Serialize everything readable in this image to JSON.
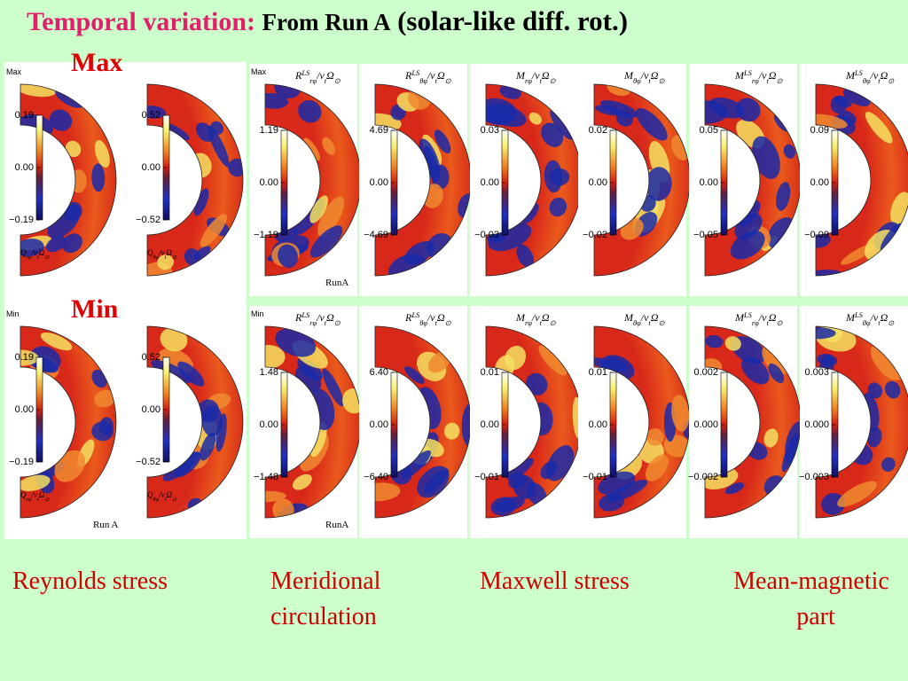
{
  "title": {
    "lead": "Temporal variation:",
    "rest": "From Run A",
    "paren": "(solar-like diff. rot.)"
  },
  "row_labels": [
    "Max",
    "Min"
  ],
  "panels": [
    [
      {
        "corner": "Max",
        "label": [
          {
            "t": "Q"
          },
          {
            "t": "rφ",
            "s": "sub"
          },
          {
            "t": "/ν"
          },
          {
            "t": "t",
            "s": "sub"
          },
          {
            "t": "Ω"
          },
          {
            "t": "⊙",
            "s": "sub"
          }
        ],
        "ticks": [
          "0.19",
          "0.00",
          "−0.19"
        ]
      },
      {
        "label": [
          {
            "t": "Q"
          },
          {
            "t": "θφ",
            "s": "sub"
          },
          {
            "t": "/ν"
          },
          {
            "t": "t",
            "s": "sub"
          },
          {
            "t": "Ω"
          },
          {
            "t": "⊙",
            "s": "sub"
          }
        ],
        "ticks": [
          "0.52",
          "0.00",
          "−0.52"
        ]
      },
      {
        "corner": "Max",
        "label": [
          {
            "t": "R"
          },
          {
            "t": "LS",
            "s": "sup"
          },
          {
            "t": "rφ",
            "s": "sub"
          },
          {
            "t": "/ν"
          },
          {
            "t": "t",
            "s": "sub"
          },
          {
            "t": "Ω"
          },
          {
            "t": "⊙",
            "s": "sub"
          }
        ],
        "ticks": [
          "1.19",
          "0.00",
          "−1.19"
        ],
        "run": "RunA"
      },
      {
        "label": [
          {
            "t": "R"
          },
          {
            "t": "LS",
            "s": "sup"
          },
          {
            "t": "θφ",
            "s": "sub"
          },
          {
            "t": "/ν"
          },
          {
            "t": "t",
            "s": "sub"
          },
          {
            "t": "Ω"
          },
          {
            "t": "⊙",
            "s": "sub"
          }
        ],
        "ticks": [
          "4.69",
          "0.00",
          "−4.69"
        ]
      },
      {
        "label": [
          {
            "t": "M"
          },
          {
            "t": "rφ",
            "s": "sub"
          },
          {
            "t": "/ν"
          },
          {
            "t": "t",
            "s": "sub"
          },
          {
            "t": "Ω"
          },
          {
            "t": "⊙",
            "s": "sub"
          }
        ],
        "ticks": [
          "0.03",
          "0.00",
          "−0.03"
        ]
      },
      {
        "label": [
          {
            "t": "M"
          },
          {
            "t": "θφ",
            "s": "sub"
          },
          {
            "t": "/ν"
          },
          {
            "t": "t",
            "s": "sub"
          },
          {
            "t": "Ω"
          },
          {
            "t": "⊙",
            "s": "sub"
          }
        ],
        "ticks": [
          "0.02",
          "0.00",
          "−0.02"
        ]
      },
      {
        "label": [
          {
            "t": "M"
          },
          {
            "t": "LS",
            "s": "sup"
          },
          {
            "t": "rφ",
            "s": "sub"
          },
          {
            "t": "/ν"
          },
          {
            "t": "t",
            "s": "sub"
          },
          {
            "t": "Ω"
          },
          {
            "t": "⊙",
            "s": "sub"
          }
        ],
        "ticks": [
          "0.05",
          "0.00",
          "−0.05"
        ]
      },
      {
        "label": [
          {
            "t": "M"
          },
          {
            "t": "LS",
            "s": "sup"
          },
          {
            "t": "θφ",
            "s": "sub"
          },
          {
            "t": "/ν"
          },
          {
            "t": "t",
            "s": "sub"
          },
          {
            "t": "Ω"
          },
          {
            "t": "⊙",
            "s": "sub"
          }
        ],
        "ticks": [
          "0.09",
          "0.00",
          "−0.09"
        ]
      }
    ],
    [
      {
        "corner": "Min",
        "label": [
          {
            "t": "Q"
          },
          {
            "t": "rφ",
            "s": "sub"
          },
          {
            "t": "/ν"
          },
          {
            "t": "t",
            "s": "sub"
          },
          {
            "t": "Ω"
          },
          {
            "t": "⊙",
            "s": "sub"
          }
        ],
        "ticks": [
          "0.19",
          "0.00",
          "−0.19"
        ],
        "run": "Run A"
      },
      {
        "label": [
          {
            "t": "Q"
          },
          {
            "t": "θφ",
            "s": "sub"
          },
          {
            "t": "/ν"
          },
          {
            "t": "t",
            "s": "sub"
          },
          {
            "t": "Ω"
          },
          {
            "t": "⊙",
            "s": "sub"
          }
        ],
        "ticks": [
          "0.52",
          "0.00",
          "−0.52"
        ]
      },
      {
        "corner": "Min",
        "label": [
          {
            "t": "R"
          },
          {
            "t": "LS",
            "s": "sup"
          },
          {
            "t": "rφ",
            "s": "sub"
          },
          {
            "t": "/ν"
          },
          {
            "t": "t",
            "s": "sub"
          },
          {
            "t": "Ω"
          },
          {
            "t": "⊙",
            "s": "sub"
          }
        ],
        "ticks": [
          "1.48",
          "0.00",
          "−1.48"
        ],
        "run": "RunA"
      },
      {
        "label": [
          {
            "t": "R"
          },
          {
            "t": "LS",
            "s": "sup"
          },
          {
            "t": "θφ",
            "s": "sub"
          },
          {
            "t": "/ν"
          },
          {
            "t": "t",
            "s": "sub"
          },
          {
            "t": "Ω"
          },
          {
            "t": "⊙",
            "s": "sub"
          }
        ],
        "ticks": [
          "6.40",
          "0.00",
          "−6.40"
        ]
      },
      {
        "label": [
          {
            "t": "M"
          },
          {
            "t": "rφ",
            "s": "sub"
          },
          {
            "t": "/ν"
          },
          {
            "t": "t",
            "s": "sub"
          },
          {
            "t": "Ω"
          },
          {
            "t": "⊙",
            "s": "sub"
          }
        ],
        "ticks": [
          "0.01",
          "0.00",
          "−0.01"
        ]
      },
      {
        "label": [
          {
            "t": "M"
          },
          {
            "t": "θφ",
            "s": "sub"
          },
          {
            "t": "/ν"
          },
          {
            "t": "t",
            "s": "sub"
          },
          {
            "t": "Ω"
          },
          {
            "t": "⊙",
            "s": "sub"
          }
        ],
        "ticks": [
          "0.01",
          "0.00",
          "−0.01"
        ]
      },
      {
        "label": [
          {
            "t": "M"
          },
          {
            "t": "LS",
            "s": "sup"
          },
          {
            "t": "rφ",
            "s": "sub"
          },
          {
            "t": "/ν"
          },
          {
            "t": "t",
            "s": "sub"
          },
          {
            "t": "Ω"
          },
          {
            "t": "⊙",
            "s": "sub"
          }
        ],
        "ticks": [
          "0.002",
          "0.000",
          "−0.002"
        ]
      },
      {
        "label": [
          {
            "t": "M"
          },
          {
            "t": "LS",
            "s": "sup"
          },
          {
            "t": "θφ",
            "s": "sub"
          },
          {
            "t": "/ν"
          },
          {
            "t": "t",
            "s": "sub"
          },
          {
            "t": "Ω"
          },
          {
            "t": "⊙",
            "s": "sub"
          }
        ],
        "ticks": [
          "0.003",
          "0.000",
          "−0.003"
        ]
      }
    ]
  ],
  "captions": [
    [
      "Reynolds stress"
    ],
    [
      "Meridional",
      "circulation"
    ],
    [
      "Maxwell stress"
    ],
    [
      "Mean-magnetic",
      "part"
    ]
  ]
}
